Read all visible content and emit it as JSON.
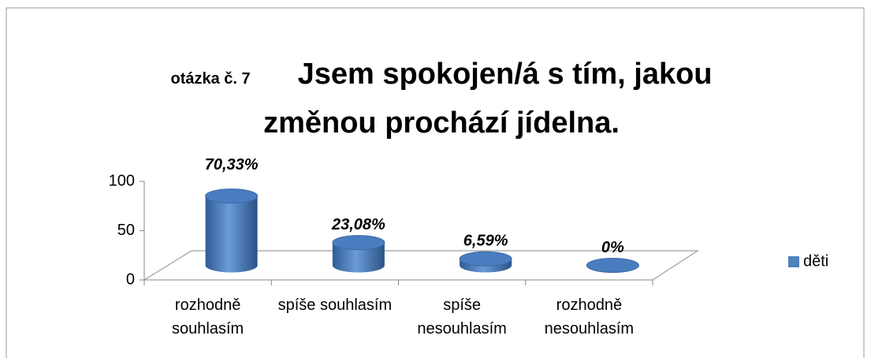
{
  "chart_data": {
    "type": "bar3d",
    "subtitle": "otázka č. 7",
    "title": "Jsem spokojen/á s tím, jakou změnou prochází jídelna.",
    "categories": [
      "rozhodně souhlasím",
      "spíše souhlasím",
      "spíše nesouhlasím",
      "rozhodně nesouhlasím"
    ],
    "series": [
      {
        "name": "děti",
        "color": "#4f81bd",
        "values": [
          70.33,
          23.08,
          6.59,
          0
        ],
        "value_labels": [
          "70,33%",
          "23,08%",
          "6,59%",
          "0%"
        ]
      }
    ],
    "ylim": [
      0,
      100
    ],
    "yticks": [
      0,
      50,
      100
    ],
    "legend": "right"
  }
}
